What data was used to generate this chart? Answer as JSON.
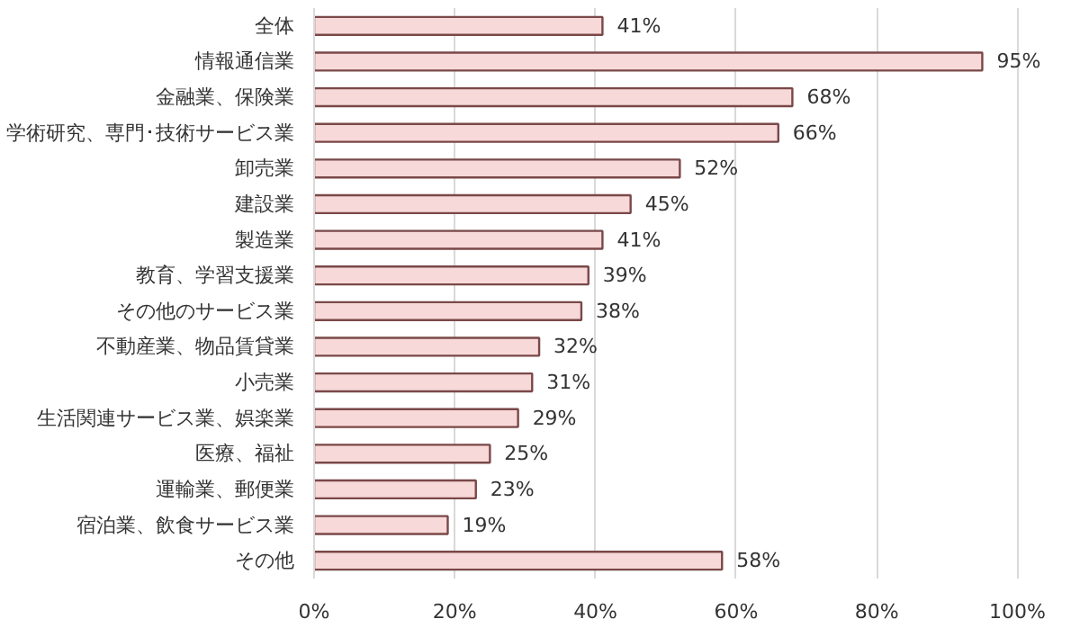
{
  "chart_data": {
    "type": "bar",
    "orientation": "horizontal",
    "categories": [
      "全体",
      "情報通信業",
      "金融業、保険業",
      "学術研究、専門･技術サービス業",
      "卸売業",
      "建設業",
      "製造業",
      "教育、学習支援業",
      "その他のサービス業",
      "不動産業、物品賃貸業",
      "小売業",
      "生活関連サービス業、娯楽業",
      "医療、福祉",
      "運輸業、郵便業",
      "宿泊業、飲食サービス業",
      "その他"
    ],
    "values": [
      41,
      95,
      68,
      66,
      52,
      45,
      41,
      39,
      38,
      32,
      31,
      29,
      25,
      23,
      19,
      58
    ],
    "value_labels": [
      "41%",
      "95%",
      "68%",
      "66%",
      "52%",
      "45%",
      "41%",
      "39%",
      "38%",
      "32%",
      "31%",
      "29%",
      "25%",
      "23%",
      "19%",
      "58%"
    ],
    "color": "#f8d9d9",
    "xlim": [
      0,
      100
    ],
    "xticks": [
      {
        "value": 0,
        "label": "0%"
      },
      {
        "value": 20,
        "label": "20%"
      },
      {
        "value": 40,
        "label": "40%"
      },
      {
        "value": 60,
        "label": "60%"
      },
      {
        "value": 80,
        "label": "80%"
      },
      {
        "value": 100,
        "label": "100%"
      }
    ],
    "grid": "x"
  }
}
